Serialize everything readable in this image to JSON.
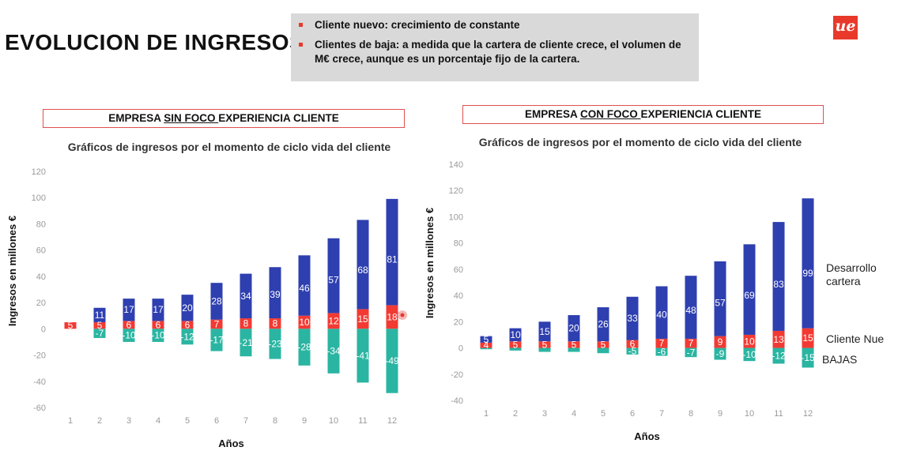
{
  "header": {
    "title": "EVOLUCION DE INGRESOS",
    "notes": [
      "Cliente nuevo: crecimiento de constante",
      "Clientes de baja: a medida que la cartera de cliente crece, el volumen de M€ crece, aunque es un porcentaje fijo de la cartera."
    ],
    "logo_text": "ue"
  },
  "colors": {
    "desarrollo": "#2e3fb0",
    "nuevo": "#f23a33",
    "bajas": "#2ab5a2",
    "accent": "#e8392b"
  },
  "left_box": {
    "prefix": "EMPRESA ",
    "emph": "SIN FOCO ",
    "suffix": "EXPERIENCIA CLIENTE"
  },
  "right_box": {
    "prefix": "EMPRESA ",
    "emph": "CON FOCO ",
    "suffix": "EXPERIENCIA CLIENTE"
  },
  "legend": {
    "desarrollo": "Desarrollo cartera",
    "nuevo": "Cliente Nue",
    "bajas": "BAJAS"
  },
  "chart_data": [
    {
      "type": "bar",
      "stacked": true,
      "title": "Gráficos de ingresos por el momento de ciclo vida del cliente",
      "xlabel": "Años",
      "ylabel": "Ingresos en millones €",
      "ylim": [
        -60,
        120
      ],
      "yticks": [
        -60,
        -40,
        -20,
        0,
        20,
        40,
        60,
        80,
        100,
        120
      ],
      "categories": [
        "1",
        "2",
        "3",
        "4",
        "5",
        "6",
        "7",
        "8",
        "9",
        "10",
        "11",
        "12"
      ],
      "series": [
        {
          "key": "nuevo",
          "values": [
            5,
            5,
            6,
            6,
            6,
            7,
            8,
            8,
            10,
            12,
            15,
            18
          ],
          "labels": [
            "5",
            "5",
            "6",
            "6",
            "6",
            "7",
            "8",
            "8",
            "10",
            "12",
            "15",
            "18"
          ]
        },
        {
          "key": "desarrollo",
          "values": [
            0,
            11,
            17,
            17,
            20,
            28,
            34,
            39,
            46,
            57,
            68,
            81
          ],
          "labels": [
            "",
            "11",
            "17",
            "17",
            "20",
            "28",
            "34",
            "39",
            "46",
            "57",
            "68",
            "81"
          ]
        },
        {
          "key": "bajas",
          "values": [
            0,
            -7,
            -10,
            -10,
            -12,
            -17,
            -21,
            -23,
            -28,
            -34,
            -41,
            -49
          ],
          "labels": [
            "",
            "-7",
            "-10",
            "-10",
            "-12",
            "-17",
            "-21",
            "-23",
            "-28",
            "-34",
            "-41",
            "-49"
          ]
        }
      ]
    },
    {
      "type": "bar",
      "stacked": true,
      "title": "Gráficos de ingresos por el momento de ciclo vida del cliente",
      "xlabel": "Años",
      "ylabel": "Ingresos en millones €",
      "ylim": [
        -40,
        140
      ],
      "yticks": [
        -40,
        -20,
        0,
        20,
        40,
        60,
        80,
        100,
        120,
        140
      ],
      "categories": [
        "1",
        "2",
        "3",
        "4",
        "5",
        "6",
        "7",
        "8",
        "9",
        "10",
        "11",
        "12"
      ],
      "series": [
        {
          "key": "nuevo",
          "values": [
            4,
            5,
            5,
            5,
            5,
            6,
            7,
            7,
            9,
            10,
            13,
            15
          ],
          "labels": [
            "4",
            "5",
            "5",
            "5",
            "5",
            "6",
            "7",
            "7",
            "9",
            "10",
            "13",
            "15"
          ]
        },
        {
          "key": "desarrollo",
          "values": [
            5,
            10,
            15,
            20,
            26,
            33,
            40,
            48,
            57,
            69,
            83,
            99
          ],
          "labels": [
            "5",
            "10",
            "15",
            "20",
            "26",
            "33",
            "40",
            "48",
            "57",
            "69",
            "83",
            "99"
          ]
        },
        {
          "key": "bajas",
          "values": [
            -1,
            -2,
            -3,
            -3,
            -4,
            -5,
            -6,
            -7,
            -9,
            -10,
            -12,
            -15
          ],
          "labels": [
            "",
            "",
            "",
            "",
            "",
            "-5",
            "-6",
            "-7",
            "-9",
            "-10",
            "-12",
            "-15"
          ]
        }
      ]
    }
  ]
}
